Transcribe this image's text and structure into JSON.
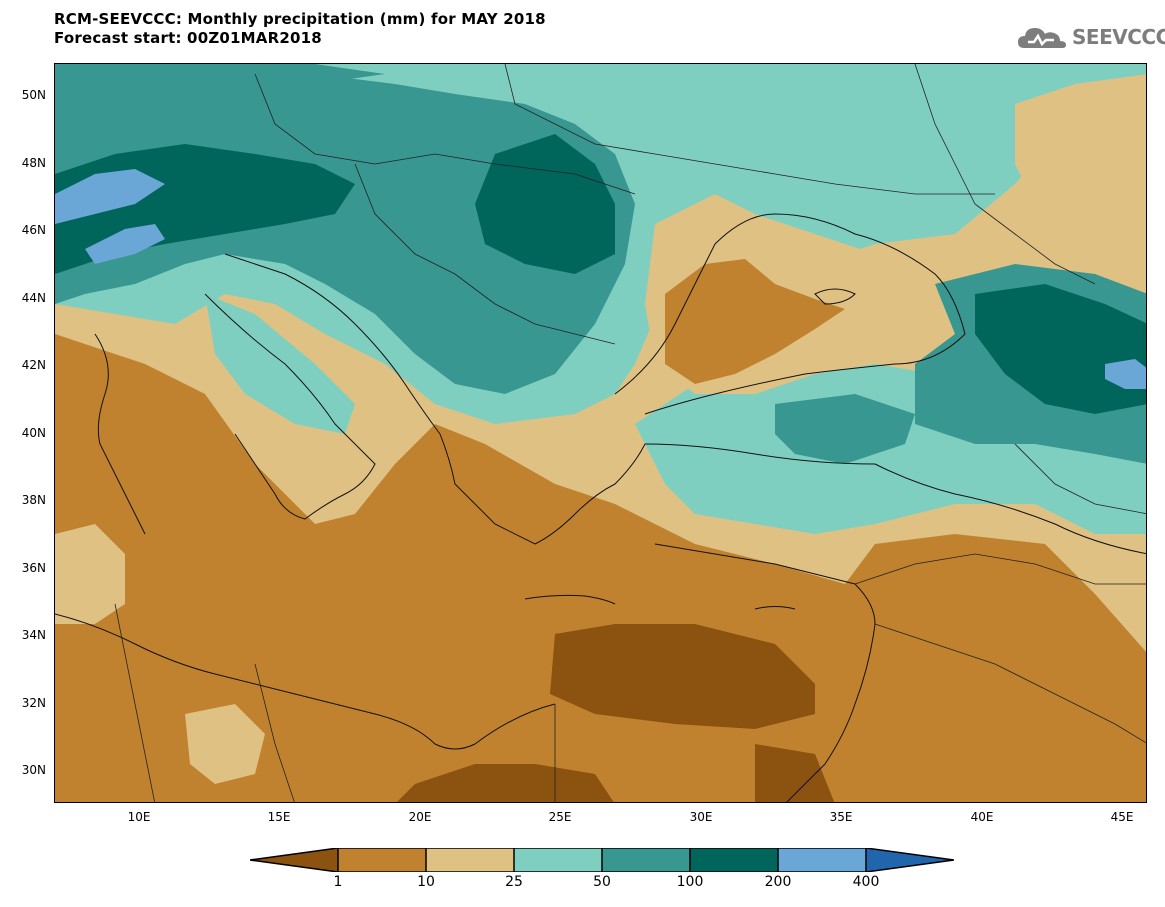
{
  "header": {
    "title_line1": "RCM-SEEVCCC: Monthly precipitation (mm) for MAY 2018",
    "title_line2": "Forecast start: 00Z01MAR2018"
  },
  "logo": {
    "text": "SEEVCCC"
  },
  "axes": {
    "lat_labels": [
      "50N",
      "48N",
      "46N",
      "44N",
      "42N",
      "40N",
      "38N",
      "36N",
      "34N",
      "32N",
      "30N"
    ],
    "lon_labels": [
      "10E",
      "15E",
      "20E",
      "25E",
      "30E",
      "35E",
      "40E",
      "45E"
    ]
  },
  "colorbar": {
    "labels": [
      "1",
      "10",
      "25",
      "50",
      "100",
      "200",
      "400"
    ],
    "colors": {
      "lt1": "#8b5210",
      "1_10": "#c0822f",
      "10_25": "#dfc183",
      "25_50": "#7fcfc1",
      "50_100": "#389790",
      "100_200": "#00665c",
      "200_400": "#6aa7d6",
      "gt400": "#2166ac"
    }
  }
}
